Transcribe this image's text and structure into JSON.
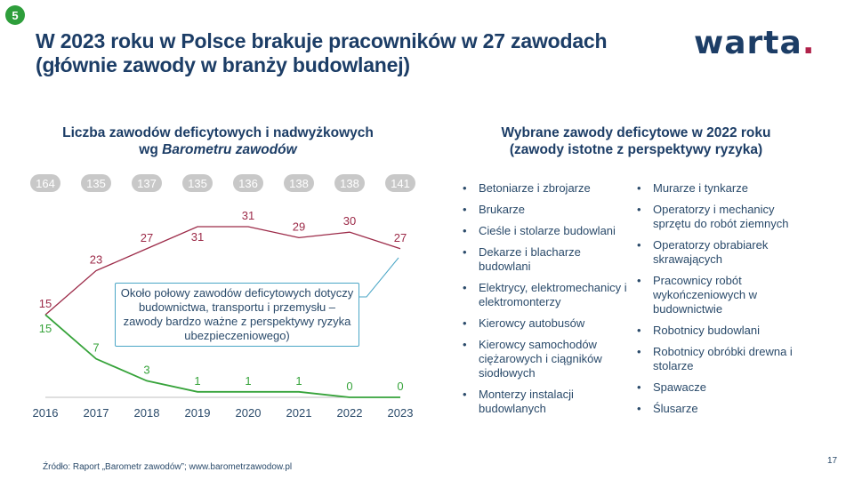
{
  "slide_number": "5",
  "title_line1": "W 2023 roku w Polsce brakuje pracowników w 27 zawodach",
  "title_line2": "(głównie zawody w branży budowlanej)",
  "logo_text": "warta",
  "logo_dot": ".",
  "colors": {
    "navy": "#1c3d66",
    "shortage": "#9c2a48",
    "surplus": "#36a33a",
    "bubble": "#c8c8c8",
    "callout_border": "#4aa6c6",
    "brand_accent": "#b0224a"
  },
  "chart_title_line1": "Liczba zawodów deficytowych i nadwyżkowych",
  "chart_title_prefix": "wg ",
  "chart_title_italic": "Barometru zawodów",
  "chart_data": {
    "type": "line",
    "x": [
      "2016",
      "2017",
      "2018",
      "2019",
      "2020",
      "2021",
      "2022",
      "2023"
    ],
    "totals": [
      164,
      135,
      137,
      135,
      136,
      138,
      138,
      141
    ],
    "series": [
      {
        "values": [
          15,
          23,
          27,
          31,
          31,
          29,
          30,
          27
        ],
        "color": "#9c2a48"
      },
      {
        "values": [
          15,
          7,
          3,
          1,
          1,
          1,
          0,
          0
        ],
        "color": "#36a33a"
      }
    ],
    "ylim": [
      0,
      31
    ],
    "grid": false,
    "legend": "none"
  },
  "callout_text": "Około połowy zawodów deficytowych dotyczy budownictwa, transportu i przemysłu – zawody bardzo ważne z perspektywy ryzyka ubezpieczeniowego)",
  "list_title_line1": "Wybrane zawody deficytowe w 2022 roku",
  "list_title_line2": "(zawody istotne z perspektywy ryzyka)",
  "list_left": [
    "Betoniarze i zbrojarze",
    "Brukarze",
    "Cieśle i stolarze budowlani",
    "Dekarze i blacharze budowlani",
    "Elektrycy, elektromechanicy i elektromonterzy",
    "Kierowcy autobusów",
    "Kierowcy samochodów ciężarowych i ciągników siodłowych",
    "Monterzy instalacji budowlanych"
  ],
  "list_right": [
    "Murarze i tynkarze",
    "Operatorzy i mechanicy sprzętu do robót ziemnych",
    "Operatorzy obrabiarek skrawających",
    "Pracownicy robót wykończeniowych w budownictwie",
    "Robotnicy budowlani",
    "Robotnicy obróbki drewna i stolarze",
    "Spawacze",
    "Ślusarze"
  ],
  "source": "Źródło: Raport „Barometr zawodów”; www.barometrzawodow.pl",
  "page_number": "17"
}
